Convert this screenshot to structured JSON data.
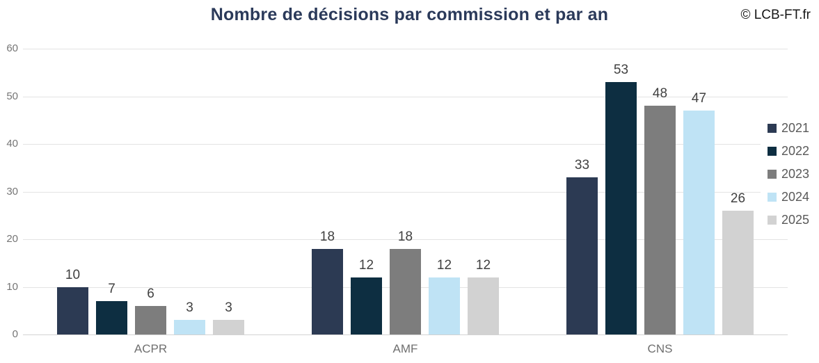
{
  "header": {
    "title": "Nombre de décisions par commission et par an",
    "copyright": "© LCB-FT.fr"
  },
  "chart_data": {
    "type": "bar",
    "title": "Nombre de décisions par commission et par an",
    "categories": [
      "ACPR",
      "AMF",
      "CNS"
    ],
    "series": [
      {
        "name": "2021",
        "color": "#2c3a53",
        "values": [
          10,
          18,
          33
        ]
      },
      {
        "name": "2022",
        "color": "#0d2e41",
        "values": [
          7,
          12,
          53
        ]
      },
      {
        "name": "2023",
        "color": "#7d7d7d",
        "values": [
          6,
          18,
          48
        ]
      },
      {
        "name": "2024",
        "color": "#bfe3f5",
        "values": [
          3,
          12,
          47
        ]
      },
      {
        "name": "2025",
        "color": "#d2d2d2",
        "values": [
          3,
          12,
          26
        ]
      }
    ],
    "ylim": [
      0,
      60
    ],
    "yticks": [
      0,
      10,
      20,
      30,
      40,
      50,
      60
    ],
    "grid": true,
    "value_labels": true,
    "legend_position": "right",
    "xlabel": "",
    "ylabel": ""
  }
}
